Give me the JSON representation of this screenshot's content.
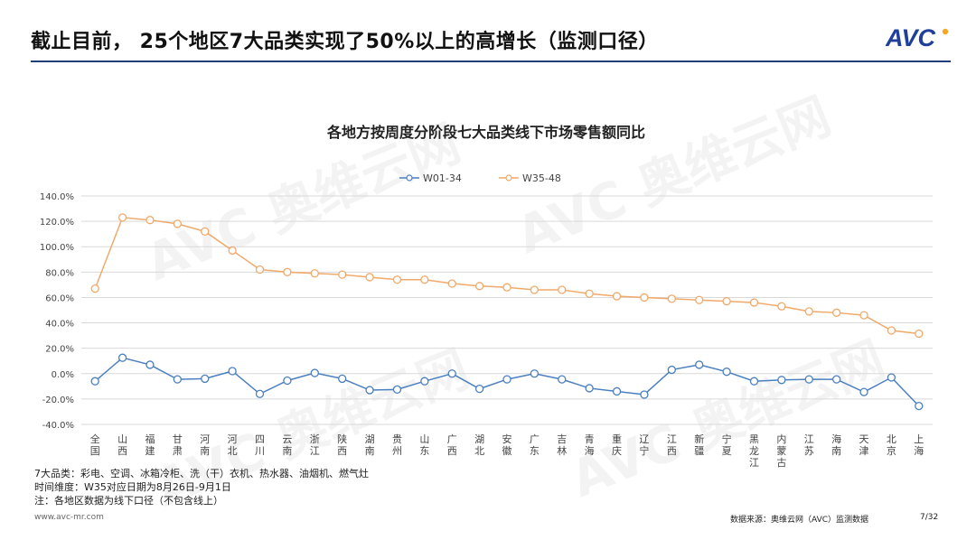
{
  "header": {
    "title": "截止目前， 25个地区7大品类实现了50%以上的高增长（监测口径）",
    "logo_text": "AVC"
  },
  "colors": {
    "series1": "#4a7fc0",
    "series2": "#f0a96a",
    "rule": "#1f3f7a",
    "logo": "#1f3f9a",
    "logo_dot": "#f5a623"
  },
  "chart_data": {
    "type": "line",
    "title": "各地方按周度分阶段七大品类线下市场零售额同比",
    "categories": [
      "全国",
      "山西",
      "福建",
      "甘肃",
      "河南",
      "河北",
      "四川",
      "云南",
      "浙江",
      "陕西",
      "湖南",
      "贵州",
      "山东",
      "广西",
      "湖北",
      "安徽",
      "广东",
      "吉林",
      "青海",
      "重庆",
      "辽宁",
      "江西",
      "新疆",
      "宁夏",
      "黑龙江",
      "内蒙古",
      "江苏",
      "海南",
      "天津",
      "北京",
      "上海"
    ],
    "series": [
      {
        "name": "W01-34",
        "color": "#4a7fc0",
        "values": [
          -6,
          12.5,
          7,
          -4.5,
          -4,
          2,
          -16,
          -5.5,
          0.5,
          -4,
          -13,
          -12.5,
          -6,
          0,
          -12,
          -4.5,
          0,
          -4.5,
          -11.5,
          -14,
          -16.5,
          3,
          7,
          1.5,
          -6,
          -5,
          -4.5,
          -4.5,
          -14.5,
          -3,
          -25.5
        ]
      },
      {
        "name": "W35-48",
        "color": "#f0a96a",
        "values": [
          67,
          123,
          121,
          118,
          112,
          97,
          82,
          80,
          79,
          78,
          76,
          74,
          74,
          71,
          69,
          68,
          66,
          66,
          63,
          61,
          60,
          59,
          58,
          57,
          56,
          53,
          49,
          48,
          46,
          34,
          31.5
        ]
      }
    ],
    "ylim": [
      -40,
      140
    ],
    "yticks": [
      -40,
      -20,
      0,
      20,
      40,
      60,
      80,
      100,
      120,
      140
    ],
    "ytick_labels": [
      "-40.0%",
      "-20.0%",
      "0.0%",
      "20.0%",
      "40.0%",
      "60.0%",
      "80.0%",
      "100.0%",
      "120.0%",
      "140.0%"
    ],
    "grid": true,
    "legend_position": "top-center"
  },
  "notes": [
    "7大品类：彩电、空调、冰箱冷柜、洗（干）衣机、热水器、油烟机、燃气灶",
    "时间维度：W35对应日期为8月26日-9月1日",
    "注：各地区数据为线下口径（不包含线上）"
  ],
  "footer": {
    "url": "www.avc-mr.com",
    "source": "数据来源：奥维云网（AVC）监测数据",
    "page": "7/32"
  }
}
